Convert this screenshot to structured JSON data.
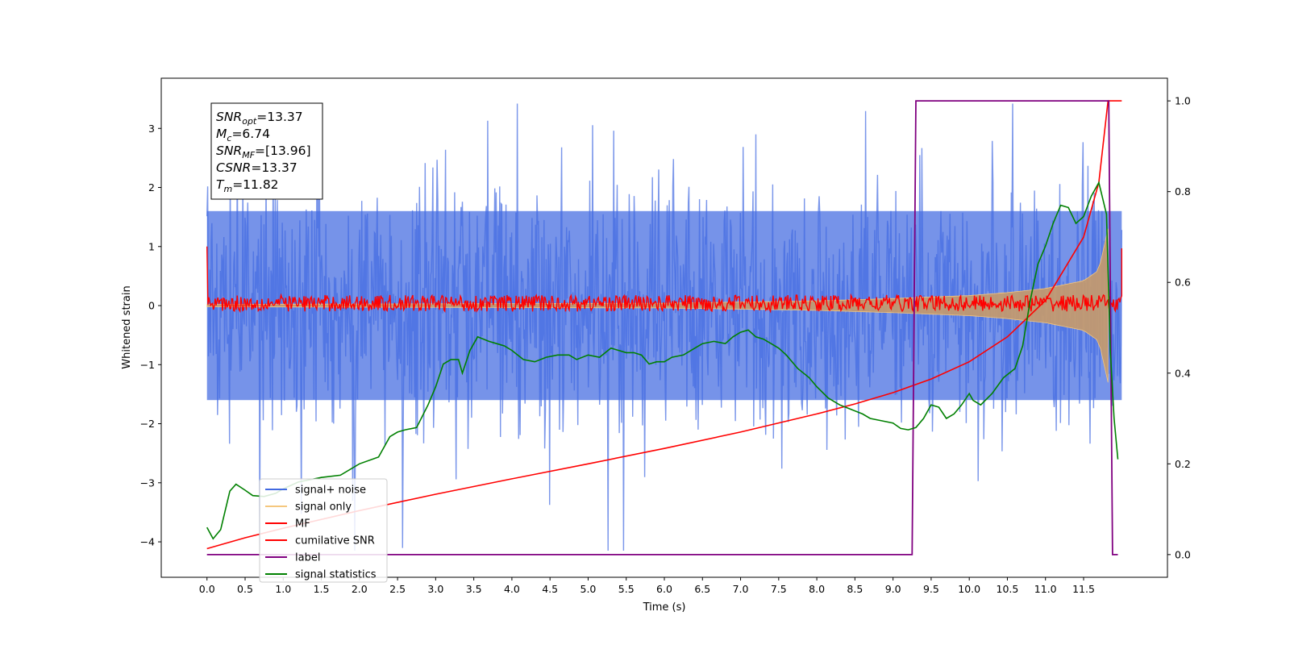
{
  "chart_data": {
    "type": "line",
    "xlabel": "Time (s)",
    "ylabel": "Whitened strain",
    "xlim": [
      -0.6,
      12.6
    ],
    "ylim": [
      -4.6,
      3.85
    ],
    "y2lim": [
      -0.05,
      1.05
    ],
    "x_ticks": [
      0.0,
      0.5,
      1.0,
      1.5,
      2.0,
      2.5,
      3.0,
      3.5,
      4.0,
      4.5,
      5.0,
      5.5,
      6.0,
      6.5,
      7.0,
      7.5,
      8.0,
      8.5,
      9.0,
      9.5,
      10.0,
      10.5,
      11.0,
      11.5
    ],
    "x_tick_labels": [
      "0.0",
      "0.5",
      "1.0",
      "1.5",
      "2.0",
      "2.5",
      "3.0",
      "3.5",
      "4.0",
      "4.5",
      "5.0",
      "5.5",
      "6.0",
      "6.5",
      "7.0",
      "7.5",
      "8.0",
      "8.5",
      "9.0",
      "9.5",
      "10.0",
      "10.5",
      "11.0",
      "11.5"
    ],
    "y_ticks": [
      -4,
      -3,
      -2,
      -1,
      0,
      1,
      2,
      3
    ],
    "y_tick_labels": [
      "−4",
      "−3",
      "−2",
      "−1",
      "0",
      "1",
      "2",
      "3"
    ],
    "y2_ticks": [
      0.0,
      0.2,
      0.4,
      0.6,
      0.8,
      1.0
    ],
    "y2_tick_labels": [
      "0.0",
      "0.2",
      "0.4",
      "0.6",
      "0.8",
      "1.0"
    ],
    "legend": {
      "placement": "lower-left",
      "entries": [
        {
          "label": "signal+ noise",
          "color": "#4169e1"
        },
        {
          "label": "signal only",
          "color": "#f5c77e"
        },
        {
          "label": "MF",
          "color": "#ff0000"
        },
        {
          "label": "cumilative SNR",
          "color": "#ff0000"
        },
        {
          "label": "label",
          "color": "#800080"
        },
        {
          "label": "signal statistics",
          "color": "#008000"
        }
      ]
    },
    "annotation": {
      "lines": [
        {
          "base": "SNR",
          "sub": "opt",
          "value": "=13.37"
        },
        {
          "base": "M",
          "sub": "c",
          "value": "=6.74"
        },
        {
          "base": "SNR",
          "sub": "MF",
          "value": "=[13.96]"
        },
        {
          "base": "CSNR",
          "sub": "",
          "value": "=13.37"
        },
        {
          "base": "T",
          "sub": "m",
          "value": "=11.82"
        }
      ]
    },
    "series": [
      {
        "name": "signal+ noise",
        "axis": "left",
        "style": "noise",
        "t_range": [
          0.0,
          12.0
        ],
        "band_upper": 1.6,
        "band_lower": -1.6,
        "spike_max": 3.42,
        "spike_min": -4.15
      },
      {
        "name": "signal only",
        "axis": "left",
        "style": "chirp-envelope",
        "envelope": {
          "t": [
            0.0,
            6.0,
            8.0,
            9.0,
            10.0,
            10.5,
            11.0,
            11.5,
            11.7,
            11.82
          ],
          "amp": [
            0.02,
            0.04,
            0.08,
            0.12,
            0.17,
            0.22,
            0.29,
            0.42,
            0.6,
            1.3
          ]
        }
      },
      {
        "name": "MF",
        "axis": "left",
        "style": "noise",
        "t_range": [
          0.0,
          12.0
        ],
        "band_upper": 0.18,
        "band_lower": -0.1,
        "start_value": 1.0,
        "end_value": 0.97
      },
      {
        "name": "cumilative SNR",
        "axis": "right",
        "points": [
          [
            0.0,
            0.013
          ],
          [
            0.5,
            0.037
          ],
          [
            1.0,
            0.058
          ],
          [
            2.0,
            0.097
          ],
          [
            3.0,
            0.133
          ],
          [
            4.0,
            0.167
          ],
          [
            5.0,
            0.2
          ],
          [
            6.0,
            0.234
          ],
          [
            7.0,
            0.27
          ],
          [
            8.0,
            0.31
          ],
          [
            8.5,
            0.332
          ],
          [
            9.0,
            0.357
          ],
          [
            9.5,
            0.387
          ],
          [
            10.0,
            0.425
          ],
          [
            10.5,
            0.48
          ],
          [
            11.0,
            0.56
          ],
          [
            11.5,
            0.7
          ],
          [
            11.7,
            0.82
          ],
          [
            11.82,
            1.0
          ],
          [
            12.0,
            1.0
          ]
        ]
      },
      {
        "name": "label",
        "axis": "right",
        "points": [
          [
            0.0,
            0.0
          ],
          [
            9.25,
            0.0
          ],
          [
            9.3,
            1.0
          ],
          [
            11.83,
            1.0
          ],
          [
            11.88,
            0.0
          ],
          [
            11.95,
            0.0
          ]
        ]
      },
      {
        "name": "signal statistics",
        "axis": "right",
        "points": [
          [
            0.0,
            0.06
          ],
          [
            0.08,
            0.035
          ],
          [
            0.18,
            0.055
          ],
          [
            0.3,
            0.14
          ],
          [
            0.38,
            0.155
          ],
          [
            0.5,
            0.142
          ],
          [
            0.6,
            0.13
          ],
          [
            0.75,
            0.128
          ],
          [
            0.9,
            0.135
          ],
          [
            1.0,
            0.145
          ],
          [
            1.2,
            0.16
          ],
          [
            1.5,
            0.17
          ],
          [
            1.75,
            0.175
          ],
          [
            2.0,
            0.2
          ],
          [
            2.25,
            0.215
          ],
          [
            2.4,
            0.26
          ],
          [
            2.5,
            0.27
          ],
          [
            2.6,
            0.275
          ],
          [
            2.75,
            0.28
          ],
          [
            2.9,
            0.33
          ],
          [
            3.0,
            0.37
          ],
          [
            3.1,
            0.42
          ],
          [
            3.2,
            0.43
          ],
          [
            3.3,
            0.43
          ],
          [
            3.35,
            0.4
          ],
          [
            3.45,
            0.45
          ],
          [
            3.55,
            0.48
          ],
          [
            3.7,
            0.47
          ],
          [
            3.8,
            0.465
          ],
          [
            3.9,
            0.46
          ],
          [
            4.0,
            0.45
          ],
          [
            4.15,
            0.43
          ],
          [
            4.3,
            0.425
          ],
          [
            4.45,
            0.435
          ],
          [
            4.6,
            0.44
          ],
          [
            4.75,
            0.44
          ],
          [
            4.85,
            0.43
          ],
          [
            5.0,
            0.44
          ],
          [
            5.15,
            0.435
          ],
          [
            5.3,
            0.455
          ],
          [
            5.4,
            0.45
          ],
          [
            5.5,
            0.445
          ],
          [
            5.6,
            0.445
          ],
          [
            5.7,
            0.44
          ],
          [
            5.8,
            0.42
          ],
          [
            5.9,
            0.425
          ],
          [
            6.0,
            0.425
          ],
          [
            6.1,
            0.435
          ],
          [
            6.25,
            0.44
          ],
          [
            6.4,
            0.455
          ],
          [
            6.5,
            0.465
          ],
          [
            6.65,
            0.47
          ],
          [
            6.8,
            0.465
          ],
          [
            6.9,
            0.48
          ],
          [
            7.0,
            0.49
          ],
          [
            7.1,
            0.495
          ],
          [
            7.2,
            0.48
          ],
          [
            7.3,
            0.475
          ],
          [
            7.4,
            0.465
          ],
          [
            7.5,
            0.455
          ],
          [
            7.6,
            0.44
          ],
          [
            7.75,
            0.41
          ],
          [
            7.9,
            0.39
          ],
          [
            8.0,
            0.37
          ],
          [
            8.15,
            0.345
          ],
          [
            8.3,
            0.33
          ],
          [
            8.45,
            0.32
          ],
          [
            8.6,
            0.31
          ],
          [
            8.7,
            0.3
          ],
          [
            8.85,
            0.295
          ],
          [
            9.0,
            0.29
          ],
          [
            9.1,
            0.278
          ],
          [
            9.2,
            0.275
          ],
          [
            9.3,
            0.28
          ],
          [
            9.4,
            0.3
          ],
          [
            9.5,
            0.33
          ],
          [
            9.6,
            0.325
          ],
          [
            9.7,
            0.3
          ],
          [
            9.8,
            0.31
          ],
          [
            9.9,
            0.33
          ],
          [
            10.0,
            0.355
          ],
          [
            10.05,
            0.34
          ],
          [
            10.15,
            0.33
          ],
          [
            10.3,
            0.355
          ],
          [
            10.45,
            0.39
          ],
          [
            10.6,
            0.41
          ],
          [
            10.7,
            0.46
          ],
          [
            10.8,
            0.56
          ],
          [
            10.9,
            0.64
          ],
          [
            11.0,
            0.68
          ],
          [
            11.1,
            0.73
          ],
          [
            11.2,
            0.77
          ],
          [
            11.3,
            0.765
          ],
          [
            11.4,
            0.73
          ],
          [
            11.5,
            0.745
          ],
          [
            11.6,
            0.79
          ],
          [
            11.7,
            0.82
          ],
          [
            11.8,
            0.75
          ],
          [
            11.85,
            0.45
          ],
          [
            11.9,
            0.3
          ],
          [
            11.95,
            0.21
          ]
        ]
      }
    ]
  },
  "colors": {
    "noise": "#4169e1",
    "signal": "#f5c77e",
    "mf": "#ff0000",
    "csnr": "#ff0000",
    "label": "#800080",
    "stats": "#008000"
  }
}
